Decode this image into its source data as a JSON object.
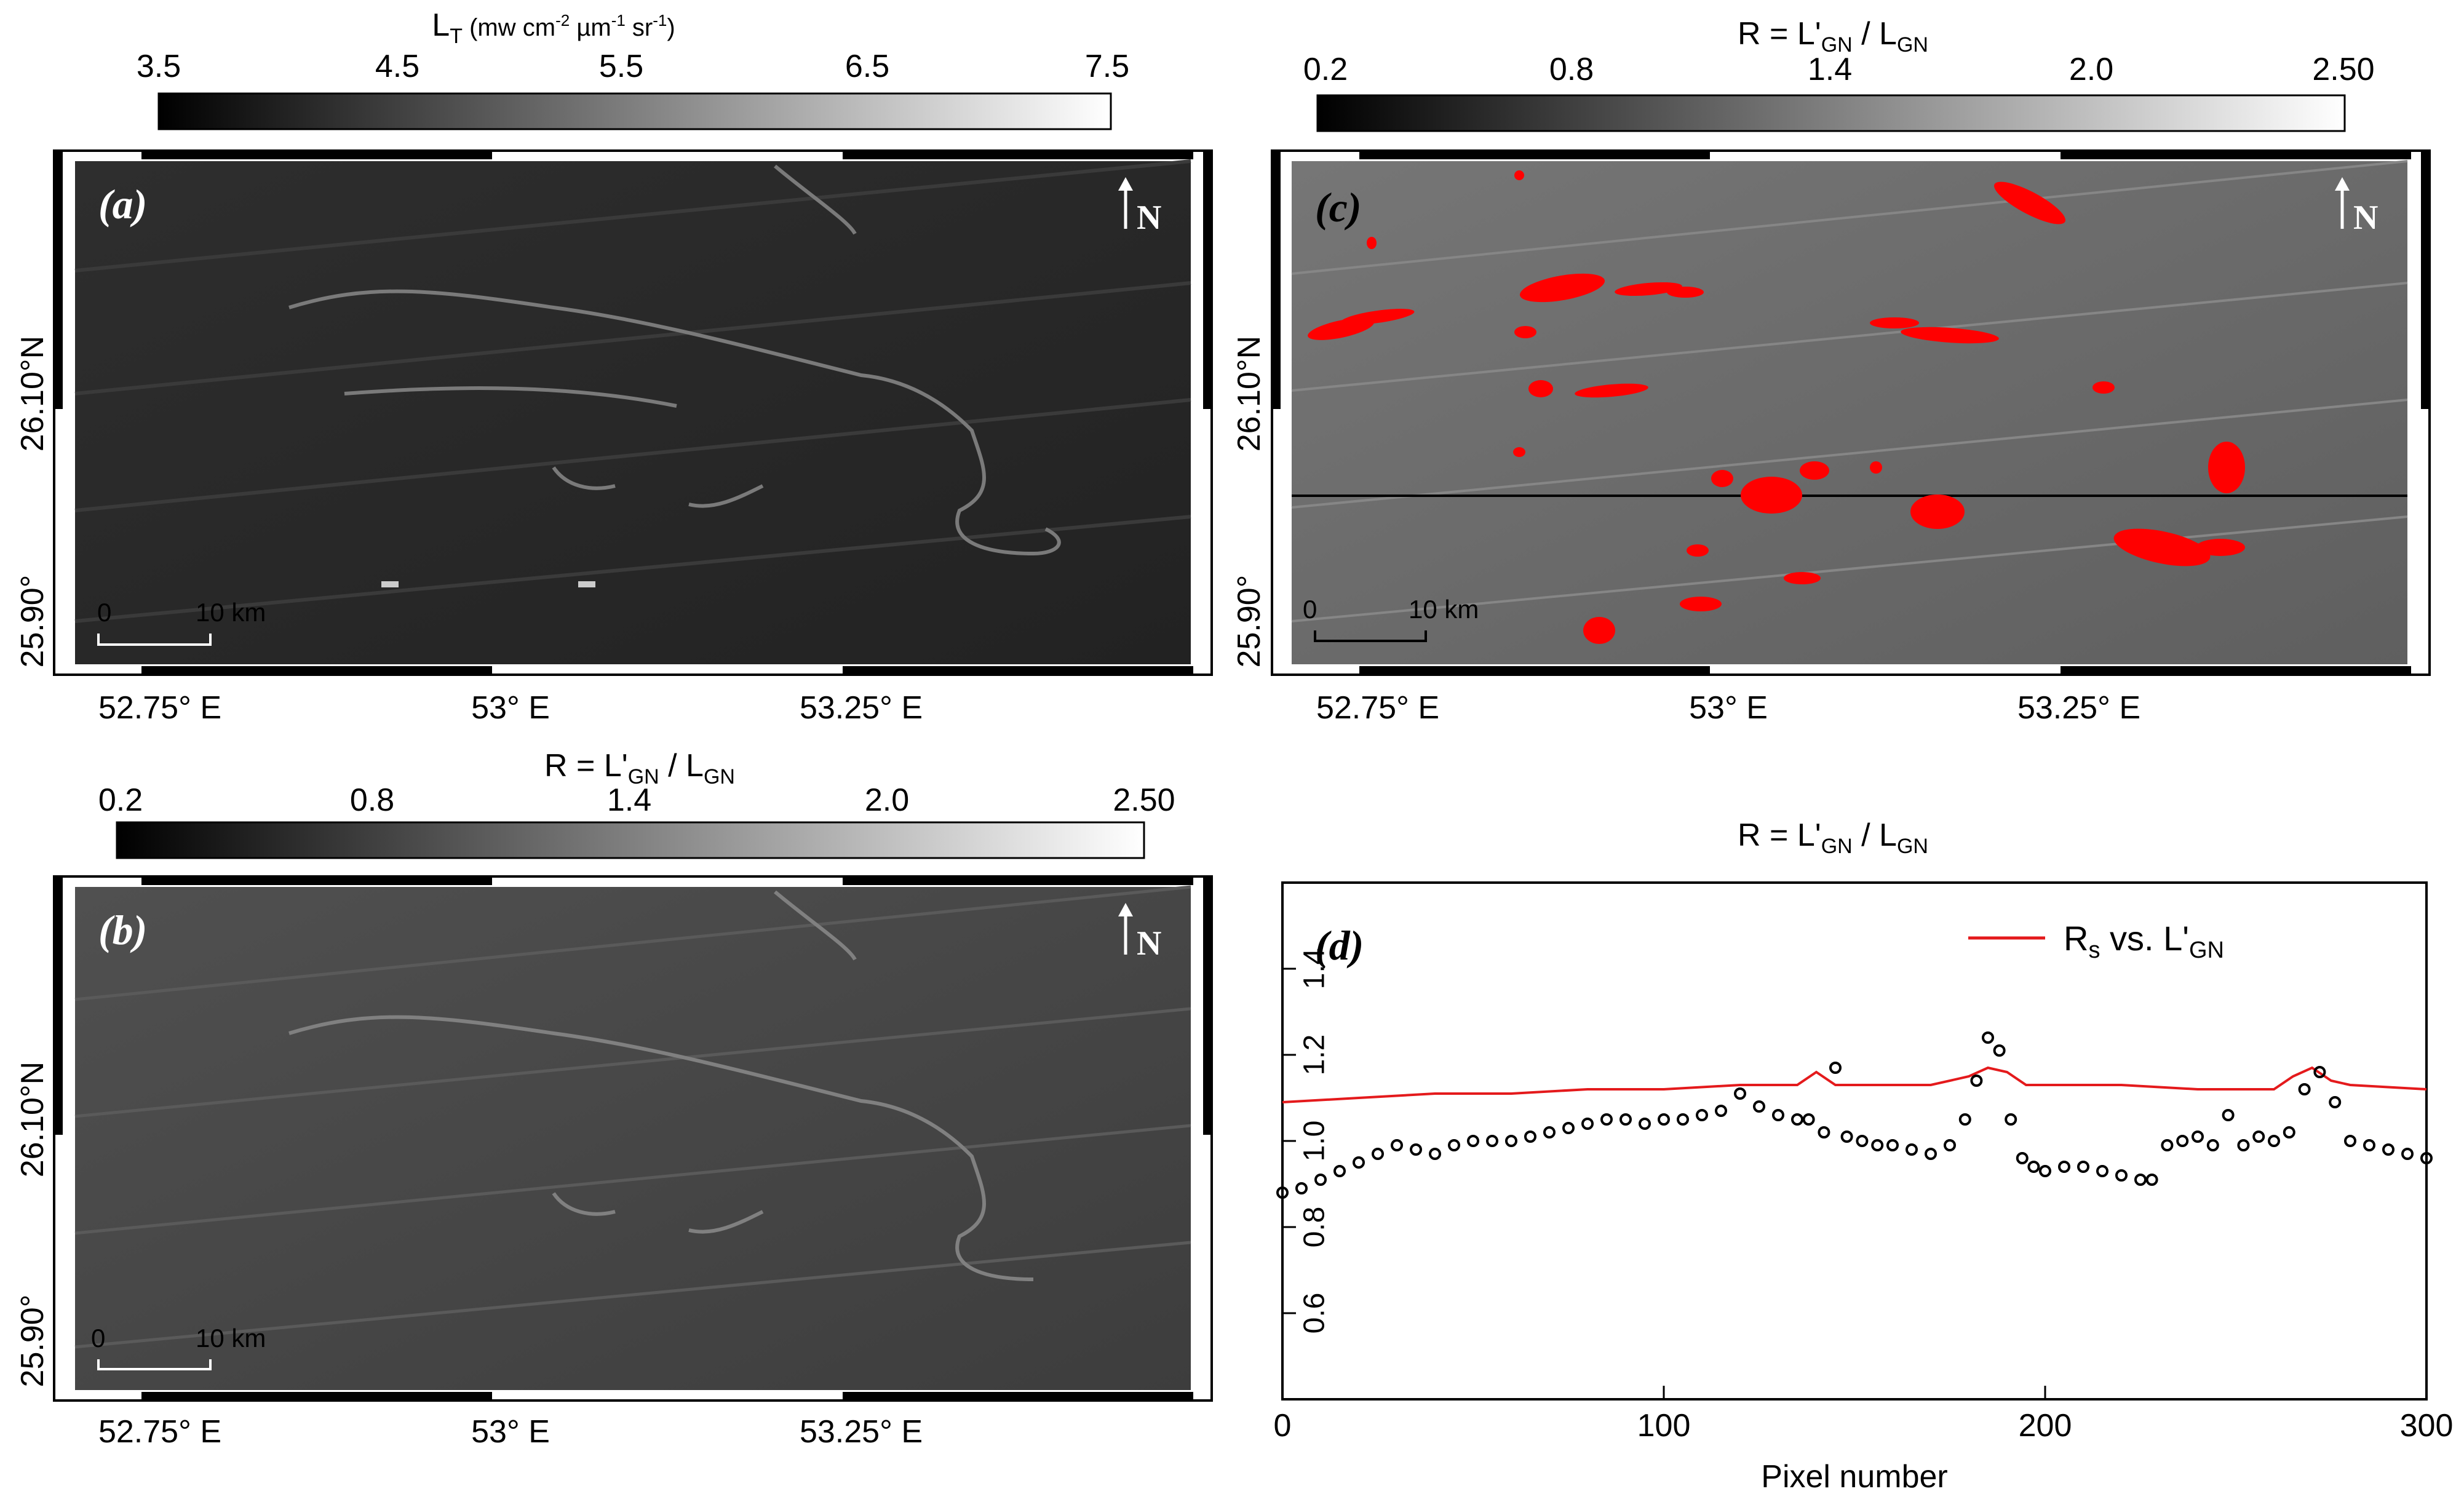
{
  "colors": {
    "red_overlay": "#ff0000",
    "rs_line": "#e41a1c",
    "profile_line": "#000000",
    "image_bg": "#333333",
    "image_bg_c": "#6e6e6e"
  },
  "panels": {
    "a": {
      "label": "(a)",
      "colorbar": {
        "title_main": "L",
        "title_sub": "T",
        "title_rest": " (mw cm",
        "sup1": "-2",
        "mid": " µm",
        "sup2": "-1",
        "tail": " sr",
        "sup3": "-1",
        "close": ")",
        "ticks": [
          "3.5",
          "4.5",
          "5.5",
          "6.5",
          "7.5"
        ]
      },
      "north": "N",
      "scale_bar": {
        "start": "0",
        "end": "10 km"
      },
      "lon_ticks": [
        "52.75° E",
        "53° E",
        "53.25° E"
      ],
      "lat_ticks": [
        "26.10°N",
        "25.90°"
      ]
    },
    "b": {
      "label": "(b)",
      "colorbar": {
        "title": "R = L'",
        "sub1": "GN",
        "mid": " / L",
        "sub2": "GN",
        "ticks": [
          "0.2",
          "0.8",
          "1.4",
          "2.0",
          "2.50"
        ]
      },
      "north": "N",
      "scale_bar": {
        "start": "0",
        "end": "10 km"
      },
      "lon_ticks": [
        "52.75° E",
        "53° E",
        "53.25° E"
      ],
      "lat_ticks": [
        "26.10°N",
        "25.90°"
      ]
    },
    "c": {
      "label": "(c)",
      "colorbar": {
        "title": "R = L'",
        "sub1": "GN",
        "mid": " / L",
        "sub2": "GN",
        "ticks": [
          "0.2",
          "0.8",
          "1.4",
          "2.0",
          "2.50"
        ]
      },
      "north": "N",
      "scale_bar": {
        "start": "0",
        "end": "10 km"
      },
      "lon_ticks": [
        "52.75° E",
        "53° E",
        "53.25° E"
      ],
      "lat_ticks": [
        "26.10°N",
        "25.90°"
      ]
    },
    "d": {
      "label": "(d)",
      "title": "R = L'",
      "title_sub1": "GN",
      "title_mid": " / L",
      "title_sub2": "GN",
      "legend": {
        "main": "R",
        "sub": "s",
        "mid": " vs. L'",
        "sub2": "GN"
      },
      "xlabel": "Pixel number"
    }
  },
  "chart_data": {
    "type": "scatter",
    "xlabel": "Pixel number",
    "ylabel": "",
    "xlim": [
      0,
      300
    ],
    "ylim": [
      0.4,
      1.6
    ],
    "x_ticks": [
      0,
      100,
      200,
      300
    ],
    "y_ticks": [
      0.6,
      0.8,
      1.0,
      1.2,
      1.4
    ],
    "legend_position": "top-right",
    "series": [
      {
        "name": "Rs vs. L'GN",
        "kind": "line",
        "x": [
          0,
          20,
          40,
          60,
          80,
          100,
          120,
          135,
          140,
          145,
          150,
          170,
          180,
          185,
          190,
          195,
          200,
          220,
          240,
          260,
          265,
          270,
          275,
          280,
          300
        ],
        "y": [
          1.09,
          1.1,
          1.11,
          1.11,
          1.12,
          1.12,
          1.13,
          1.13,
          1.16,
          1.13,
          1.13,
          1.13,
          1.15,
          1.17,
          1.16,
          1.13,
          1.13,
          1.13,
          1.12,
          1.12,
          1.15,
          1.17,
          1.14,
          1.13,
          1.12
        ]
      },
      {
        "name": "",
        "kind": "markers",
        "x": [
          0,
          5,
          10,
          15,
          20,
          25,
          30,
          35,
          40,
          45,
          50,
          55,
          60,
          65,
          70,
          75,
          80,
          85,
          90,
          95,
          100,
          105,
          110,
          115,
          120,
          125,
          130,
          135,
          138,
          142,
          145,
          148,
          152,
          156,
          160,
          165,
          170,
          175,
          179,
          182,
          185,
          188,
          191,
          194,
          197,
          200,
          205,
          210,
          215,
          220,
          225,
          228,
          232,
          236,
          240,
          244,
          248,
          252,
          256,
          260,
          264,
          268,
          272,
          276,
          280,
          285,
          290,
          295,
          300
        ],
        "y": [
          0.88,
          0.89,
          0.91,
          0.93,
          0.95,
          0.97,
          0.99,
          0.98,
          0.97,
          0.99,
          1.0,
          1.0,
          1.0,
          1.01,
          1.02,
          1.03,
          1.04,
          1.05,
          1.05,
          1.04,
          1.05,
          1.05,
          1.06,
          1.07,
          1.11,
          1.08,
          1.06,
          1.05,
          1.05,
          1.02,
          1.17,
          1.01,
          1.0,
          0.99,
          0.99,
          0.98,
          0.97,
          0.99,
          1.05,
          1.14,
          1.24,
          1.21,
          1.05,
          0.96,
          0.94,
          0.93,
          0.94,
          0.94,
          0.93,
          0.92,
          0.91,
          0.91,
          0.99,
          1.0,
          1.01,
          0.99,
          1.06,
          0.99,
          1.01,
          1.0,
          1.02,
          1.12,
          1.16,
          1.09,
          1.0,
          0.99,
          0.98,
          0.97,
          0.96
        ]
      }
    ]
  }
}
